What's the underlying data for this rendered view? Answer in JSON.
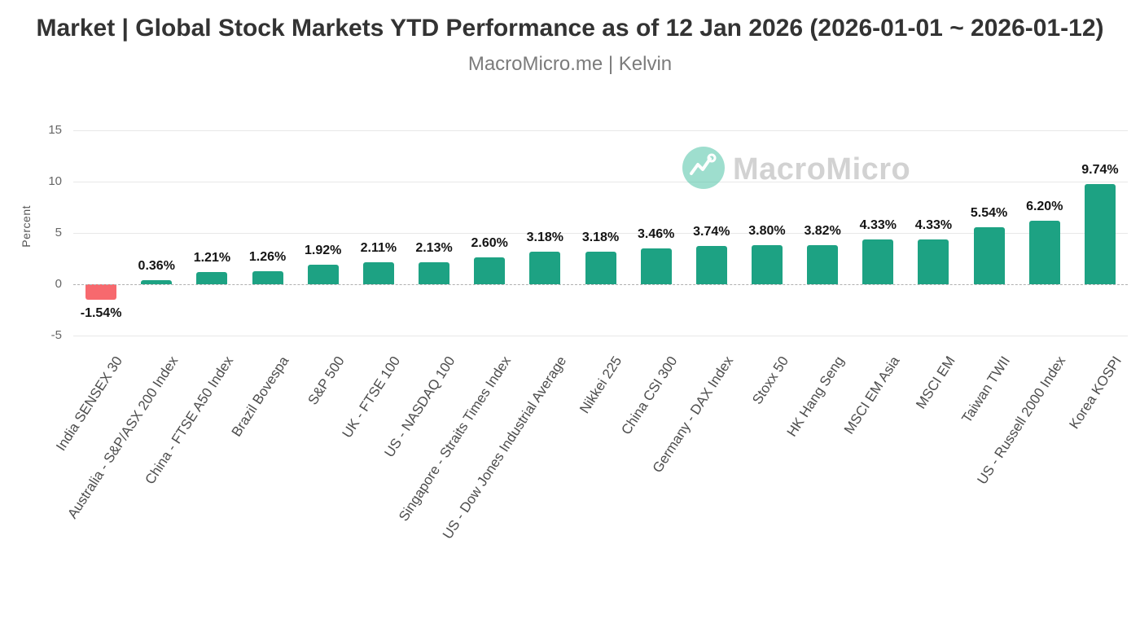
{
  "header": {
    "title": "Market | Global Stock Markets YTD Performance as of 12 Jan 2026 (2026-01-01 ~ 2026-01-12)",
    "subtitle": "MacroMicro.me | Kelvin"
  },
  "watermark": {
    "text": "MacroMicro"
  },
  "chart_data": {
    "type": "bar",
    "title": "Market | Global Stock Markets YTD Performance as of 12 Jan 2026 (2026-01-01 ~ 2026-01-12)",
    "xlabel": "",
    "ylabel": "Percent",
    "ylim": [
      -5,
      15
    ],
    "yticks": [
      15,
      10,
      5,
      0,
      -5
    ],
    "grid": true,
    "legend": "none",
    "categories": [
      "India SENSEX 30",
      "Australia - S&P/ASX 200 Index",
      "China - FTSE A50 Index",
      "Brazil Bovespa",
      "S&P 500",
      "UK - FTSE 100",
      "US - NASDAQ 100",
      "Singapore - Straits Times Index",
      "US - Dow Jones Industrial Average",
      "Nikkei 225",
      "China CSI 300",
      "Germany - DAX Index",
      "Stoxx 50",
      "HK Hang Seng",
      "MSCI EM Asia",
      "MSCI EM",
      "Taiwan TWII",
      "US - Russell 2000 Index",
      "Korea KOSPI"
    ],
    "values": [
      -1.54,
      0.36,
      1.21,
      1.26,
      1.92,
      2.11,
      2.13,
      2.6,
      3.18,
      3.18,
      3.46,
      3.74,
      3.8,
      3.82,
      4.33,
      4.33,
      5.54,
      6.2,
      9.74
    ],
    "value_labels": [
      "-1.54%",
      "0.36%",
      "1.21%",
      "1.26%",
      "1.92%",
      "2.11%",
      "2.13%",
      "2.60%",
      "3.18%",
      "3.18%",
      "3.46%",
      "3.74%",
      "3.80%",
      "3.82%",
      "4.33%",
      "4.33%",
      "5.54%",
      "6.20%",
      "9.74%"
    ],
    "colors": {
      "positive": "#1da283",
      "negative": "#f7696e"
    }
  }
}
